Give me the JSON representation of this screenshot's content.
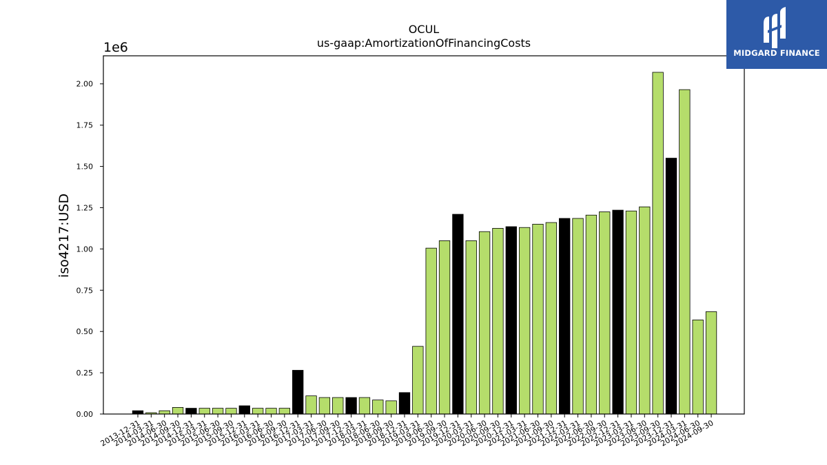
{
  "brand": {
    "name": "MIDGARD FINANCE",
    "logo_icon": "midgard-logo-icon",
    "background": "#2d5aa8"
  },
  "chart_data": {
    "type": "bar",
    "title": "OCUL",
    "subtitle": "us-gaap:AmortizationOfFinancingCosts",
    "xlabel": "",
    "ylabel": "iso4217:USD",
    "y_scale_label": "1e6",
    "ylim": [
      0,
      2170000
    ],
    "yticks": [
      0,
      250000,
      500000,
      750000,
      1000000,
      1250000,
      1500000,
      1750000,
      2000000
    ],
    "ytick_labels": [
      "0.00",
      "0.25",
      "0.50",
      "0.75",
      "1.00",
      "1.25",
      "1.50",
      "1.75",
      "2.00"
    ],
    "grid": false,
    "colors": {
      "annual": "#000000",
      "quarterly": "#b5dd6b",
      "edge": "#000000"
    },
    "categories": [
      "2013-12-31",
      "2014-03-31",
      "2014-06-30",
      "2014-09-30",
      "2014-12-31",
      "2015-03-31",
      "2015-06-30",
      "2015-09-30",
      "2015-12-31",
      "2016-03-31",
      "2016-06-30",
      "2016-09-30",
      "2016-12-31",
      "2017-03-31",
      "2017-06-30",
      "2017-09-30",
      "2017-12-31",
      "2018-03-31",
      "2018-06-30",
      "2018-09-30",
      "2018-12-31",
      "2019-03-31",
      "2019-06-30",
      "2019-09-30",
      "2019-12-31",
      "2020-03-31",
      "2020-06-30",
      "2020-09-30",
      "2020-12-31",
      "2021-03-31",
      "2021-06-30",
      "2021-09-30",
      "2021-12-31",
      "2022-03-31",
      "2022-06-30",
      "2022-09-30",
      "2022-12-31",
      "2023-03-31",
      "2023-06-30",
      "2023-09-30",
      "2023-12-31",
      "2024-03-31",
      "2024-06-30",
      "2024-09-30"
    ],
    "values": [
      20000,
      8000,
      20000,
      40000,
      35000,
      35000,
      35000,
      35000,
      50000,
      35000,
      35000,
      35000,
      265000,
      110000,
      100000,
      100000,
      100000,
      100000,
      85000,
      80000,
      130000,
      410000,
      1005000,
      1050000,
      1210000,
      1050000,
      1105000,
      1125000,
      1135000,
      1130000,
      1150000,
      1160000,
      1185000,
      1185000,
      1205000,
      1225000,
      1235000,
      1230000,
      1255000,
      2070000,
      1550000,
      1965000,
      570000,
      620000
    ],
    "annual": [
      true,
      false,
      false,
      false,
      true,
      false,
      false,
      false,
      true,
      false,
      false,
      false,
      true,
      false,
      false,
      false,
      true,
      false,
      false,
      false,
      true,
      false,
      false,
      false,
      true,
      false,
      false,
      false,
      true,
      false,
      false,
      false,
      true,
      false,
      false,
      false,
      true,
      false,
      false,
      false,
      true,
      false,
      false,
      false
    ]
  }
}
